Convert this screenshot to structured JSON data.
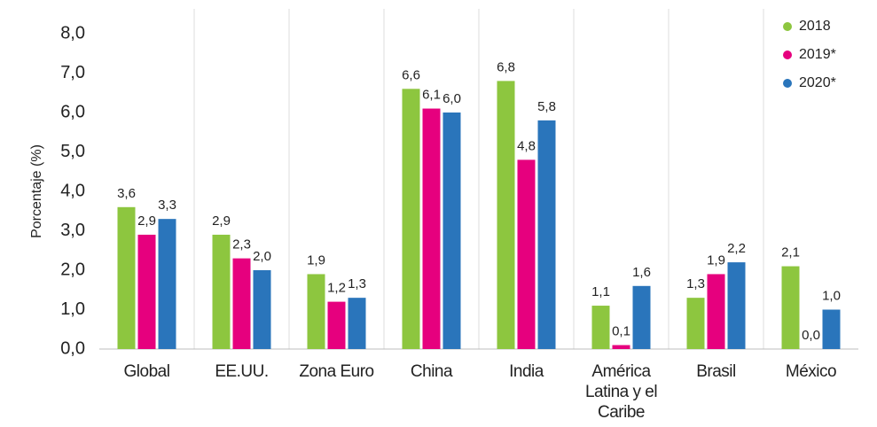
{
  "chart_data": {
    "type": "bar",
    "y_label": "Porcentaje (%)",
    "categories": [
      "Global",
      "EE.UU.",
      "Zona Euro",
      "China",
      "India",
      "América Latina y el Caribe",
      "Brasil",
      "México"
    ],
    "series": [
      {
        "name": "2018",
        "color": "#8dc63f",
        "values": [
          3.6,
          2.9,
          1.9,
          6.6,
          6.8,
          1.1,
          1.3,
          2.1
        ],
        "value_labels": [
          "3,6",
          "2,9",
          "1,9",
          "6,6",
          "6,8",
          "1,1",
          "1,3",
          "2,1"
        ]
      },
      {
        "name": "2019*",
        "color": "#e6007e",
        "values": [
          2.9,
          2.3,
          1.2,
          6.1,
          4.8,
          0.1,
          1.9,
          0.0
        ],
        "value_labels": [
          "2,9",
          "2,3",
          "1,2",
          "6,1",
          "4,8",
          "0,1",
          "1,9",
          "0,0"
        ]
      },
      {
        "name": "2020*",
        "color": "#2a75bb",
        "values": [
          3.3,
          2.0,
          1.3,
          6.0,
          5.8,
          1.6,
          2.2,
          1.0
        ],
        "value_labels": [
          "3,3",
          "2,0",
          "1,3",
          "6,0",
          "5,8",
          "1,6",
          "2,2",
          "1,0"
        ]
      }
    ],
    "ylim": [
      0,
      8
    ],
    "yticks": [
      {
        "value": 0,
        "label": "0,0"
      },
      {
        "value": 1,
        "label": "1,0"
      },
      {
        "value": 2,
        "label": "2,0"
      },
      {
        "value": 3,
        "label": "3,0"
      },
      {
        "value": 4,
        "label": "4,0"
      },
      {
        "value": 5,
        "label": "5,0"
      },
      {
        "value": 6,
        "label": "6,0"
      },
      {
        "value": 7,
        "label": "7,0"
      },
      {
        "value": 8,
        "label": "8,0"
      }
    ],
    "legend": "top-right"
  }
}
